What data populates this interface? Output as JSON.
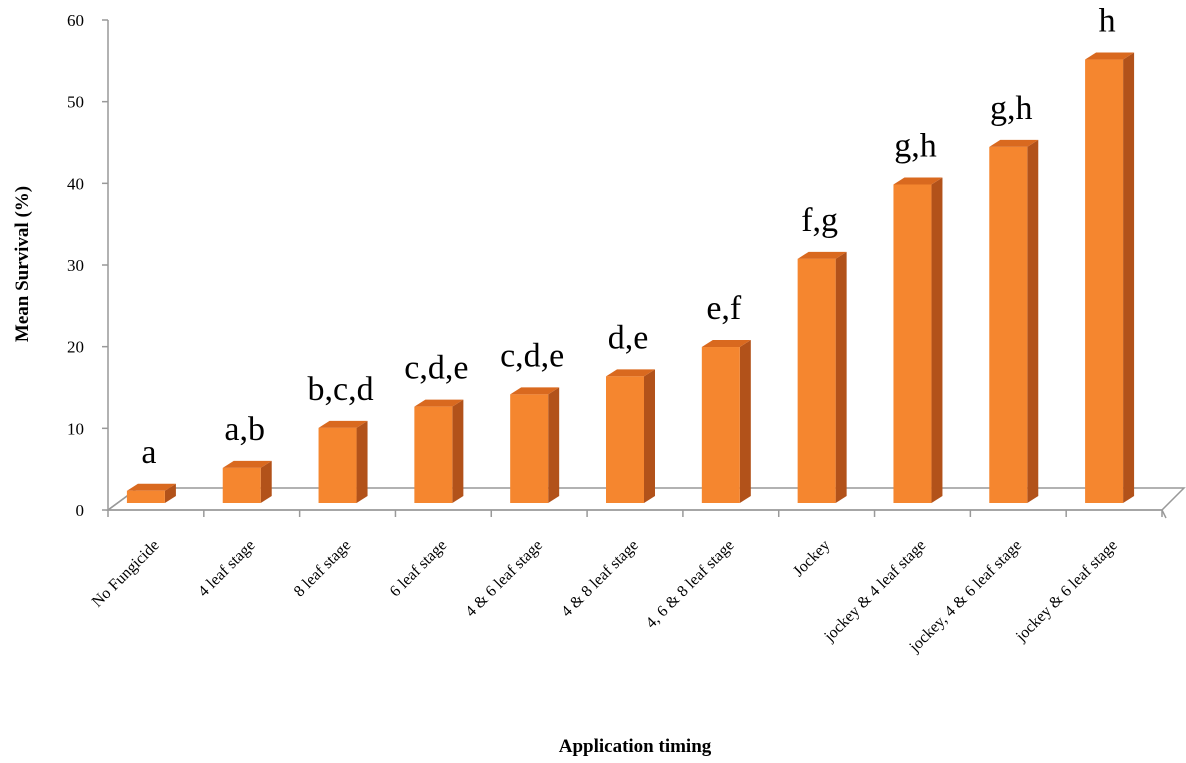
{
  "chart_data": {
    "type": "bar",
    "title": "",
    "xlabel": "Application timing",
    "ylabel": "Mean Survival (%)",
    "ylim": [
      0,
      60
    ],
    "yticks": [
      0,
      10,
      20,
      30,
      40,
      50,
      60
    ],
    "grid": false,
    "legend": "none",
    "bar_color": "#f5862f",
    "categories": [
      "No Fungicide",
      "4 leaf stage",
      "8 leaf stage",
      "6 leaf stage",
      "4 & 6 leaf stage",
      "4 & 8 leaf stage",
      "4, 6 & 8 leaf stage",
      "Jockey",
      "jockey & 4 leaf stage",
      "jockey, 4 & 6 leaf stage",
      "jockey & 6 leaf stage"
    ],
    "values": [
      1.5,
      4.3,
      9.2,
      11.8,
      13.3,
      15.5,
      19.1,
      29.9,
      39.0,
      43.6,
      54.3
    ],
    "annotations": [
      "a",
      "a,b",
      "b,c,d",
      "c,d,e",
      "c,d,e",
      "d,e",
      "e,f",
      "f,g",
      "g,h",
      "g,h",
      "h"
    ]
  }
}
